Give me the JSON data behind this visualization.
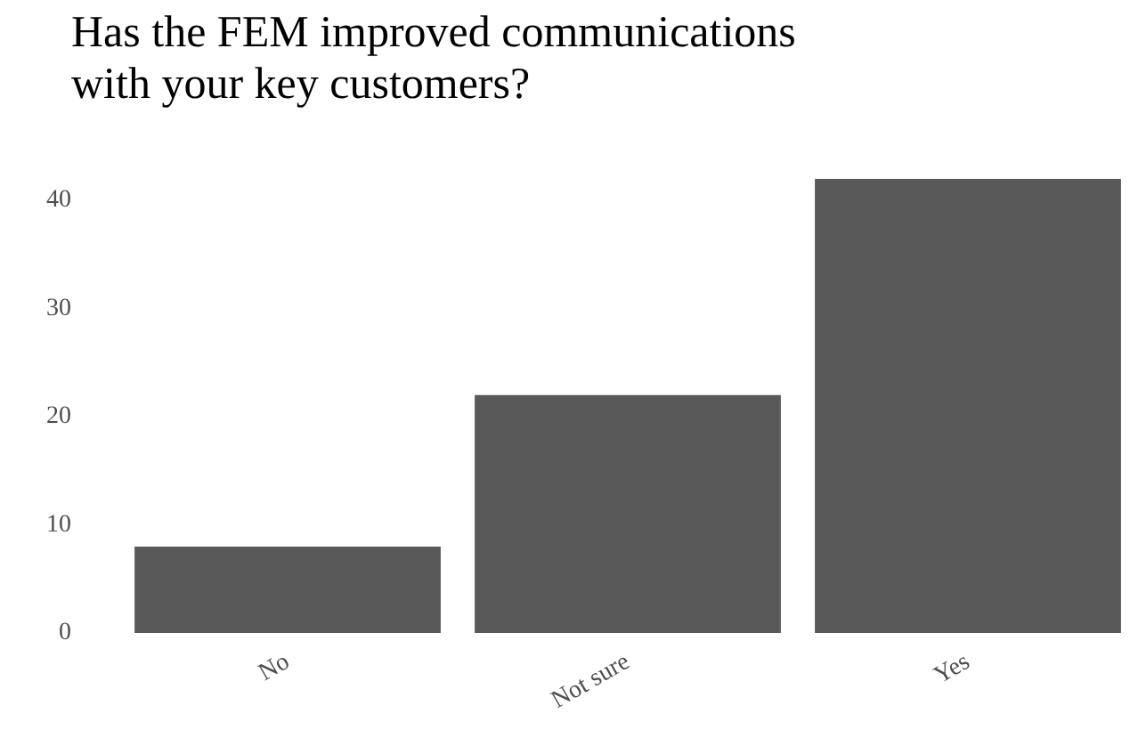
{
  "chart_data": {
    "type": "bar",
    "title": "Has the FEM improved communications with your key customers?",
    "categories": [
      "No",
      "Not sure",
      "Yes"
    ],
    "values": [
      8,
      22,
      42
    ],
    "color": "#595959",
    "ylim": [
      0,
      42
    ],
    "yticks": [
      0,
      10,
      20,
      30,
      40
    ],
    "grid": false,
    "legend": false
  }
}
